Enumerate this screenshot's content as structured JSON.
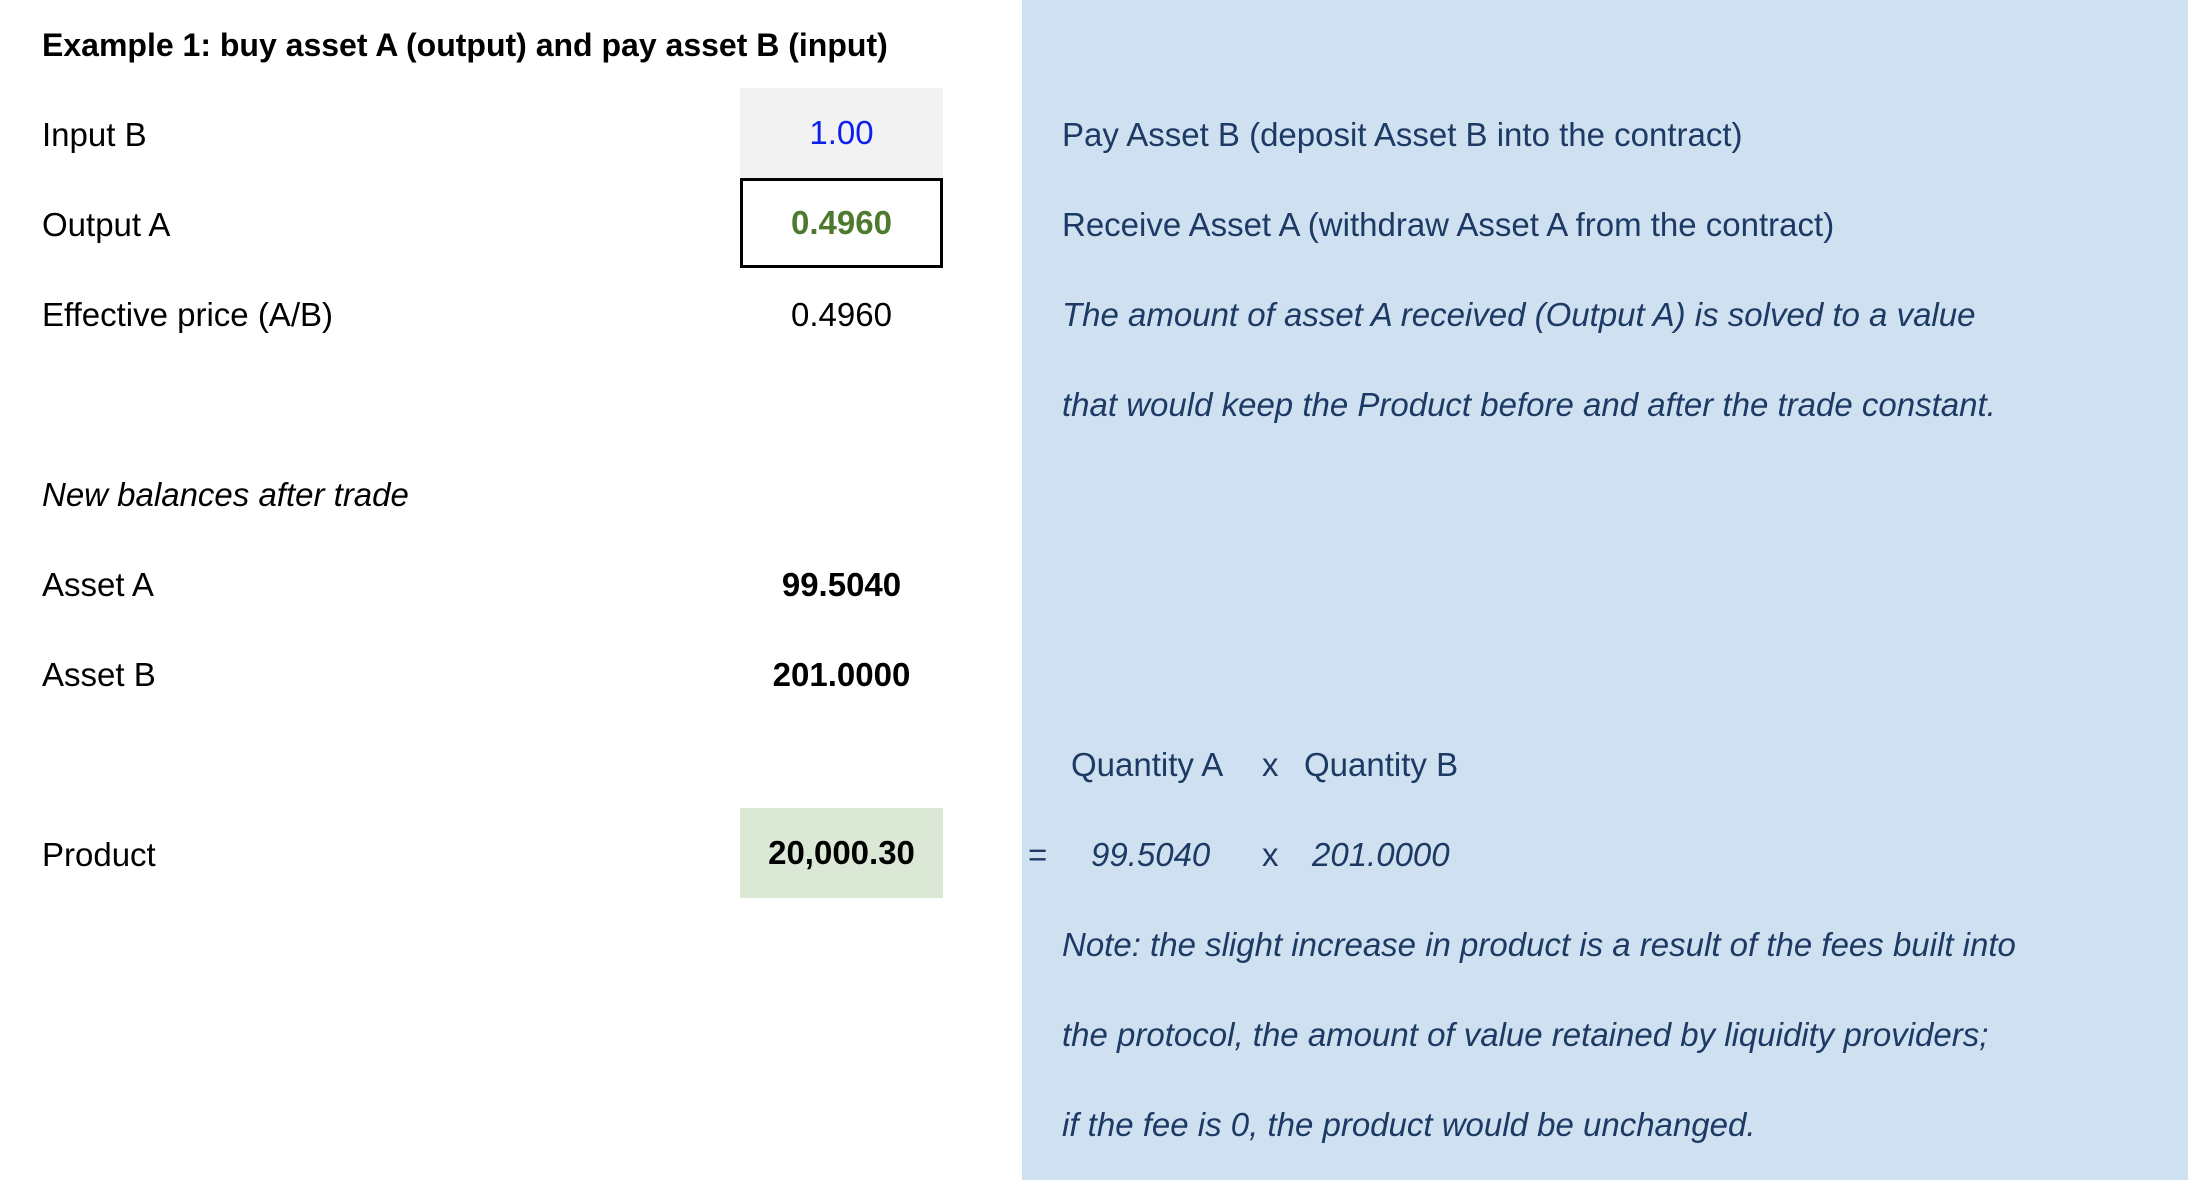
{
  "title": "Example 1: buy asset A (output) and pay asset B (input)",
  "rows": {
    "input_b": {
      "label": "Input B",
      "value": "1.00",
      "note": "Pay Asset B (deposit Asset B into the contract)"
    },
    "output_a": {
      "label": "Output A",
      "value": "0.4960",
      "note": "Receive Asset A (withdraw Asset A from the contract)"
    },
    "effective_price": {
      "label": "Effective price (A/B)",
      "value": "0.4960",
      "note": "The amount of asset A received (Output A) is solved to a value",
      "note2": "that would keep the Product before and after the trade constant."
    },
    "new_balances": {
      "label": "New balances after trade"
    },
    "asset_a": {
      "label": "Asset A",
      "value": "99.5040"
    },
    "asset_b": {
      "label": "Asset B",
      "value": "201.0000"
    },
    "product": {
      "label": "Product",
      "value": "20,000.30"
    }
  },
  "formula": {
    "header_a": "Quantity A",
    "header_op": "x",
    "header_b": "Quantity B",
    "equals": "=",
    "value_a": "99.5040",
    "op": "x",
    "value_b": "201.0000"
  },
  "footnote": [
    "Note: the slight increase in product is a result of the fees built into",
    "the protocol, the amount of value retained by liquidity providers;",
    "if the fee is 0, the product would be unchanged."
  ],
  "colors": {
    "input_value": "#0a1ef0",
    "output_value": "#4e7a2f",
    "panel": "#cfe0f1",
    "note_text": "#1c3a63",
    "product_bg": "#dbe8d5"
  }
}
